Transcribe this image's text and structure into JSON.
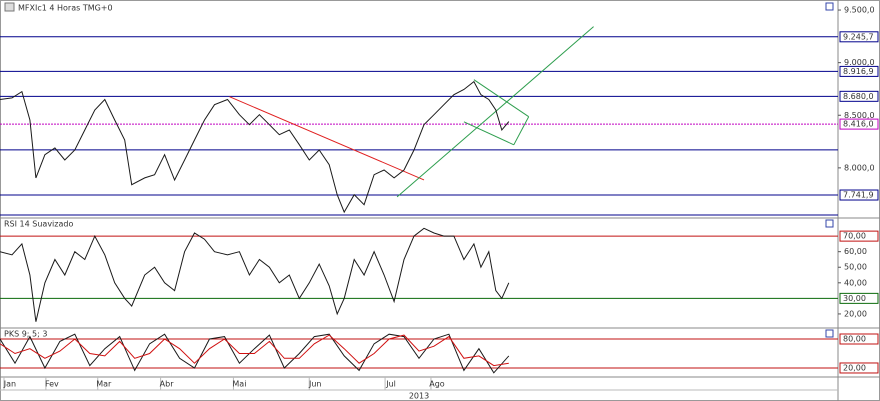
{
  "chart_data": [
    {
      "type": "line",
      "title": "MFXIc1 4 Horas TMG+0",
      "color": "#1a1a1a",
      "x": [
        0,
        12,
        22,
        30,
        36,
        45,
        55,
        65,
        75,
        85,
        95,
        105,
        115,
        125,
        132,
        145,
        155,
        165,
        175,
        185,
        195,
        205,
        215,
        228,
        240,
        250,
        260,
        270,
        280,
        290,
        300,
        310,
        320,
        330,
        338,
        345,
        355,
        365,
        375,
        385,
        395,
        405,
        415,
        425,
        435,
        445,
        455,
        465,
        475,
        482,
        490,
        497,
        503,
        510
      ],
      "values": [
        8650,
        8665,
        8725,
        8455,
        7905,
        8125,
        8190,
        8075,
        8170,
        8360,
        8550,
        8650,
        8455,
        8265,
        7840,
        7905,
        7935,
        8125,
        7885,
        8075,
        8265,
        8455,
        8600,
        8650,
        8505,
        8410,
        8505,
        8410,
        8315,
        8360,
        8220,
        8075,
        8170,
        8030,
        7745,
        7580,
        7745,
        7650,
        7935,
        7980,
        7905,
        7980,
        8170,
        8410,
        8505,
        8600,
        8695,
        8745,
        8820,
        8695,
        8650,
        8550,
        8360,
        8440
      ],
      "xlim": [
        0,
        840
      ],
      "ylim": [
        7533,
        9567
      ],
      "yticks": [
        {
          "value": 9500,
          "label": "9.500,0"
        },
        {
          "value": 9000,
          "label": "9.000,0"
        },
        {
          "value": 8500,
          "label": "8.500,0"
        },
        {
          "value": 8000,
          "label": "8.000,0"
        }
      ],
      "levels": [
        {
          "value": 9245.7,
          "label": "9.245,7",
          "color": "#00008b"
        },
        {
          "value": 8916.9,
          "label": "8.916,9",
          "color": "#00008b"
        },
        {
          "value": 8680,
          "label": "8.680,0",
          "color": "#00008b"
        },
        {
          "value": 8416,
          "label": "8.416,0",
          "color": "#c000c0"
        },
        {
          "value": 7741.9,
          "label": "7.741,9",
          "color": "#00008b"
        }
      ],
      "unlabeled_levels": [
        8171,
        7552
      ],
      "trendlines": [
        {
          "color": "#e02020",
          "x": [
            230,
            425
          ],
          "values": [
            8676,
            7886
          ]
        },
        {
          "color": "#2e9e4e",
          "x": [
            398,
            595
          ],
          "values": [
            7724,
            9343
          ]
        },
        {
          "color": "#2e9e4e",
          "x": [
            475,
            530
          ],
          "values": [
            8838,
            8486
          ]
        },
        {
          "color": "#2e9e4e",
          "x": [
            465,
            515
          ],
          "values": [
            8438,
            8219
          ]
        },
        {
          "color": "#2e9e4e",
          "x": [
            515,
            530
          ],
          "values": [
            8219,
            8486
          ]
        }
      ]
    },
    {
      "type": "line",
      "title": "RSI 14 Suavizado",
      "color": "#1a1a1a",
      "x": [
        0,
        12,
        22,
        30,
        36,
        45,
        55,
        65,
        75,
        85,
        95,
        105,
        115,
        125,
        132,
        145,
        155,
        165,
        175,
        185,
        195,
        205,
        215,
        228,
        240,
        250,
        260,
        270,
        280,
        290,
        300,
        310,
        320,
        330,
        338,
        345,
        355,
        365,
        375,
        385,
        395,
        405,
        415,
        425,
        435,
        445,
        455,
        465,
        475,
        482,
        490,
        497,
        503,
        510
      ],
      "values": [
        60,
        58,
        65,
        45,
        15,
        40,
        55,
        45,
        60,
        55,
        70,
        58,
        40,
        30,
        25,
        45,
        50,
        40,
        35,
        60,
        72,
        68,
        60,
        58,
        60,
        45,
        55,
        50,
        40,
        45,
        30,
        40,
        52,
        38,
        20,
        30,
        55,
        45,
        60,
        45,
        28,
        55,
        70,
        75,
        72,
        70,
        70,
        55,
        65,
        50,
        60,
        35,
        30,
        40
      ],
      "xlim": [
        0,
        840
      ],
      "ylim": [
        11.6,
        81
      ],
      "yticks": [
        {
          "value": 60,
          "label": "60,00"
        },
        {
          "value": 50,
          "label": "50,00"
        },
        {
          "value": 40,
          "label": "40,00"
        },
        {
          "value": 20,
          "label": "20,00"
        }
      ],
      "levels": [
        {
          "value": 70,
          "label": "70,00",
          "color": "#c01010"
        },
        {
          "value": 30,
          "label": "30,00",
          "color": "#0a6a0a"
        }
      ]
    },
    {
      "type": "line",
      "title": "PKS 9; 5; 3",
      "x": [
        0,
        15,
        30,
        45,
        60,
        75,
        90,
        105,
        120,
        135,
        150,
        165,
        180,
        195,
        210,
        225,
        240,
        255,
        270,
        285,
        300,
        315,
        330,
        345,
        360,
        375,
        390,
        405,
        420,
        435,
        450,
        465,
        480,
        495,
        510
      ],
      "series": [
        {
          "color": "#1a1a1a",
          "values": [
            80,
            30,
            85,
            20,
            75,
            90,
            25,
            60,
            85,
            15,
            70,
            90,
            40,
            20,
            80,
            85,
            30,
            60,
            88,
            20,
            50,
            85,
            90,
            45,
            15,
            70,
            90,
            85,
            40,
            80,
            90,
            15,
            60,
            10,
            45
          ]
        },
        {
          "color": "#d01010",
          "values": [
            70,
            50,
            60,
            40,
            55,
            80,
            50,
            45,
            75,
            40,
            50,
            80,
            60,
            30,
            60,
            80,
            50,
            50,
            75,
            40,
            40,
            70,
            88,
            60,
            30,
            50,
            80,
            88,
            55,
            65,
            85,
            40,
            45,
            25,
            30
          ]
        }
      ],
      "xlim": [
        0,
        840
      ],
      "ylim": [
        3.4,
        100.7
      ],
      "levels": [
        {
          "value": 80,
          "label": "80,00",
          "color": "#c01010"
        },
        {
          "value": 20,
          "label": "20,00",
          "color": "#c01010"
        }
      ],
      "xticks": [
        {
          "value": 10,
          "label": "Jan"
        },
        {
          "value": 52,
          "label": "Fev"
        },
        {
          "value": 104,
          "label": "Mar"
        },
        {
          "value": 167,
          "label": "Abr"
        },
        {
          "value": 240,
          "label": "Mai"
        },
        {
          "value": 316,
          "label": "Jun"
        },
        {
          "value": 392,
          "label": "Jul"
        },
        {
          "value": 438,
          "label": "Ago"
        }
      ],
      "x_axis_label": "2013"
    }
  ]
}
